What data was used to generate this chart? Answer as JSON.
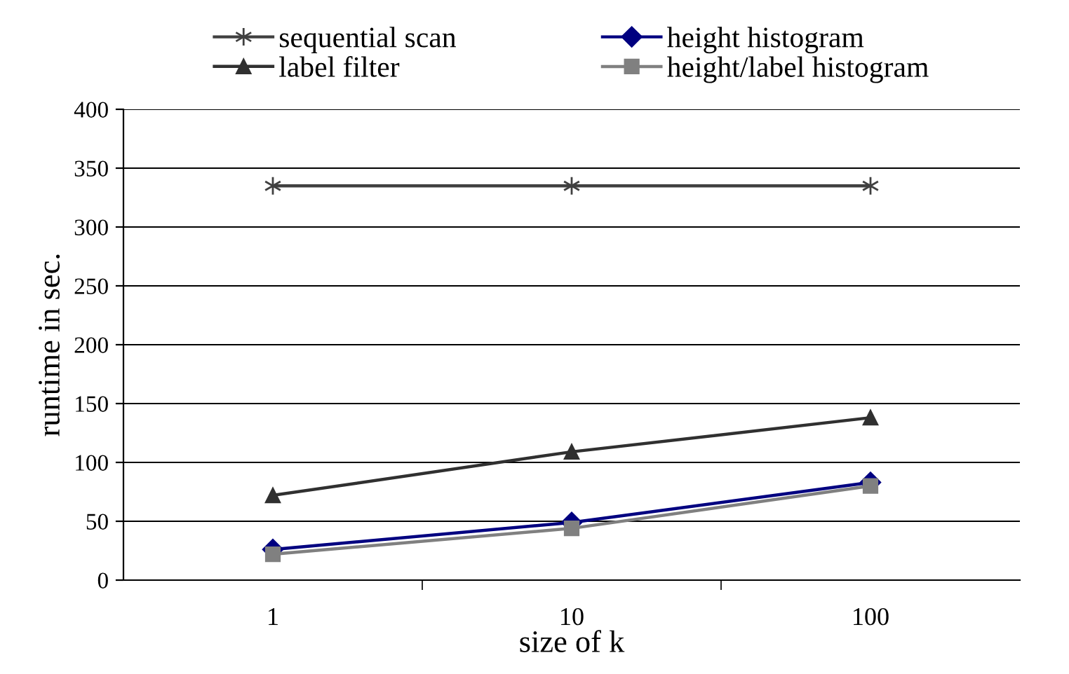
{
  "chart_data": {
    "type": "line",
    "xlabel": "size of k",
    "ylabel": "runtime in sec.",
    "categories": [
      "1",
      "10",
      "100"
    ],
    "ylim": [
      0,
      400
    ],
    "yticks": [
      0,
      50,
      100,
      150,
      200,
      250,
      300,
      350,
      400
    ],
    "grid": "y",
    "legend": "top",
    "series": [
      {
        "name": "sequential scan",
        "color": "#404040",
        "marker": "cross",
        "values": [
          335,
          335,
          335
        ]
      },
      {
        "name": "label filter",
        "color": "#303030",
        "marker": "triangle",
        "values": [
          72,
          109,
          138
        ]
      },
      {
        "name": "height histogram",
        "color": "#000080",
        "marker": "diamond",
        "values": [
          26,
          49,
          83
        ]
      },
      {
        "name": "height/label histogram",
        "color": "#808080",
        "marker": "square",
        "values": [
          22,
          44,
          80
        ]
      }
    ]
  }
}
